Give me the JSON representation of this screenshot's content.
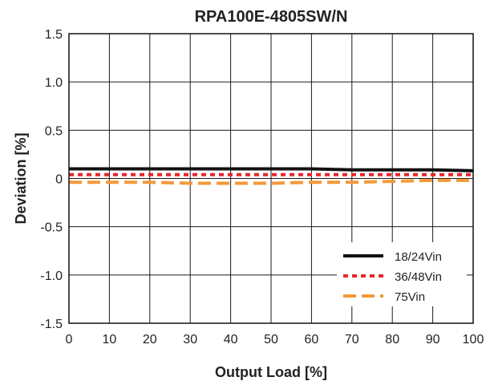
{
  "chart_data": {
    "type": "line",
    "title": "RPA100E-4805SW/N",
    "xlabel": "Output Load [%]",
    "ylabel": "Deviation [%]",
    "xlim": [
      0,
      100
    ],
    "ylim": [
      -1.5,
      1.5
    ],
    "x_ticks": [
      0,
      10,
      20,
      30,
      40,
      50,
      60,
      70,
      80,
      90,
      100
    ],
    "y_ticks": [
      1.5,
      1.0,
      0.5,
      0,
      -0.5,
      -1.0,
      -1.5
    ],
    "y_tick_labels": [
      "1.5",
      "1.0",
      "0.5",
      "0",
      "-0.5",
      "-1.0",
      "-1.5"
    ],
    "grid": true,
    "legend_position": "bottom-right",
    "x": [
      0,
      10,
      20,
      30,
      40,
      50,
      60,
      70,
      80,
      90,
      100
    ],
    "series": [
      {
        "name": "18/24Vin",
        "color": "#111111",
        "style": "solid",
        "values": [
          0.1,
          0.1,
          0.1,
          0.1,
          0.1,
          0.1,
          0.1,
          0.09,
          0.09,
          0.09,
          0.08
        ]
      },
      {
        "name": "36/48Vin",
        "color": "#e8262b",
        "style": "dotted",
        "values": [
          0.04,
          0.04,
          0.04,
          0.04,
          0.04,
          0.04,
          0.04,
          0.04,
          0.04,
          0.04,
          0.04
        ]
      },
      {
        "name": "75Vin",
        "color": "#f39a3a",
        "style": "dashed",
        "values": [
          -0.04,
          -0.04,
          -0.04,
          -0.05,
          -0.05,
          -0.05,
          -0.04,
          -0.04,
          -0.03,
          -0.02,
          -0.02
        ]
      }
    ]
  }
}
